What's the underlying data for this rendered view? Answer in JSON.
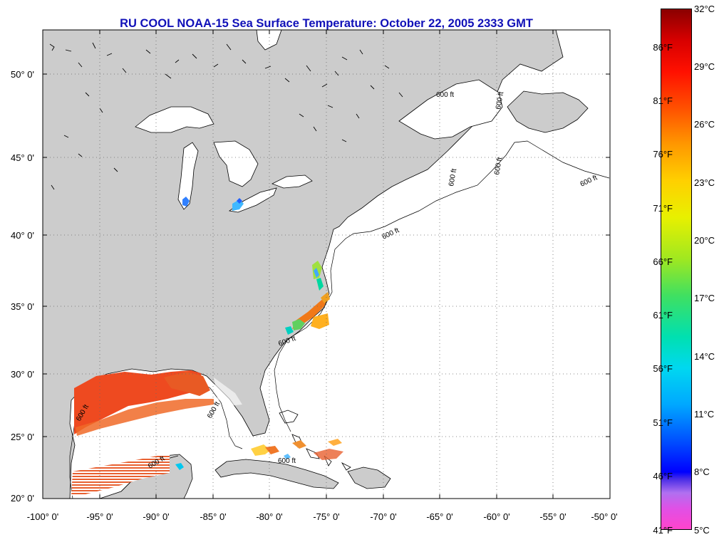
{
  "title": "RU COOL  NOAA-15  Sea Surface Temperature:  October 22, 2005 2333 GMT",
  "map": {
    "lon_range": [
      -100,
      -50
    ],
    "lat_range": [
      20,
      52.5
    ],
    "lat_labels": [
      "50° 0'",
      "45° 0'",
      "40° 0'",
      "35° 0'",
      "30° 0'",
      "25° 0'",
      "20° 0'"
    ],
    "lon_labels": [
      "-100° 0'",
      "-95° 0'",
      "-90° 0'",
      "-85° 0'",
      "-80° 0'",
      "-75° 0'",
      "-70° 0'",
      "-65° 0'",
      "-60° 0'",
      "-55° 0'",
      "-50° 0'"
    ],
    "isobath_label": "600 ft",
    "land_color": "#cccccc",
    "ocean_color": "#ffffff"
  },
  "colorbar": {
    "fahrenheit_labels": [
      "86°F",
      "81°F",
      "76°F",
      "71°F",
      "66°F",
      "61°F",
      "56°F",
      "51°F",
      "46°F",
      "41°F"
    ],
    "celsius_labels": [
      "32°C",
      "29°C",
      "26°C",
      "23°C",
      "20°C",
      "17°C",
      "14°C",
      "11°C",
      "8°C",
      "5°C"
    ],
    "range_c": [
      5,
      32
    ]
  }
}
